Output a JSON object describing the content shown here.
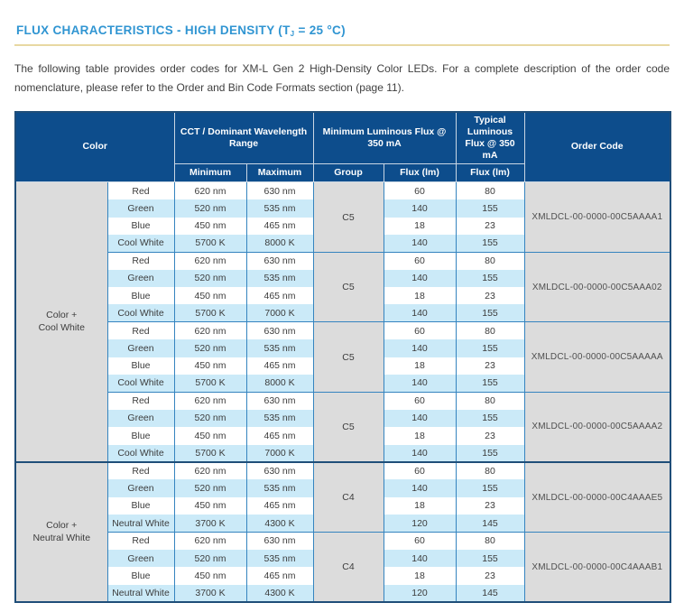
{
  "page": {
    "title_prefix": "FLUX CHARACTERISTICS - HIGH DENSITY (T",
    "title_sub": "J",
    "title_suffix": " = 25 °C)",
    "intro": "The following table provides order codes for XM-L Gen 2 High-Density Color LEDs. For a complete description of the order code nomenclature, please refer to the Order and Bin Code Formats section (page 11)."
  },
  "colors": {
    "header_bg": "#0d4d8c",
    "title_blue": "#3095d2",
    "gold_rule": "#e8d8a2",
    "alt_row": "#cbeaf8",
    "gray_cell": "#dcdcdc",
    "border_blue": "#3584bf",
    "border_navy": "#1f4e79",
    "header_sep": "#c9d6e4",
    "text_dark": "#3c3c3c",
    "order_text": "#4f4f4f"
  },
  "table": {
    "headers": {
      "color": "Color",
      "cct_range": "CCT / Dominant Wavelength Range",
      "min_flux": "Minimum Luminous Flux @ 350 mA",
      "typ_flux": "Typical Luminous Flux @ 350 mA",
      "order_code": "Order Code",
      "minimum": "Minimum",
      "maximum": "Maximum",
      "group": "Group",
      "flux_lm_min": "Flux (lm)",
      "flux_lm_typ": "Flux (lm)"
    },
    "sections": [
      {
        "label": "Color +\nCool White",
        "blocks": [
          {
            "group": "C5",
            "order_code": "XMLDCL-00-0000-00C5AAAA1",
            "rows": [
              {
                "color": "Red",
                "min": "620 nm",
                "max": "630 nm",
                "flux_min": "60",
                "flux_typ": "80"
              },
              {
                "color": "Green",
                "min": "520 nm",
                "max": "535 nm",
                "flux_min": "140",
                "flux_typ": "155"
              },
              {
                "color": "Blue",
                "min": "450 nm",
                "max": "465 nm",
                "flux_min": "18",
                "flux_typ": "23"
              },
              {
                "color": "Cool White",
                "min": "5700 K",
                "max": "8000 K",
                "flux_min": "140",
                "flux_typ": "155"
              }
            ]
          },
          {
            "group": "C5",
            "order_code": "XMLDCL-00-0000-00C5AAA02",
            "rows": [
              {
                "color": "Red",
                "min": "620 nm",
                "max": "630 nm",
                "flux_min": "60",
                "flux_typ": "80"
              },
              {
                "color": "Green",
                "min": "520 nm",
                "max": "535 nm",
                "flux_min": "140",
                "flux_typ": "155"
              },
              {
                "color": "Blue",
                "min": "450 nm",
                "max": "465 nm",
                "flux_min": "18",
                "flux_typ": "23"
              },
              {
                "color": "Cool White",
                "min": "5700 K",
                "max": "7000 K",
                "flux_min": "140",
                "flux_typ": "155"
              }
            ]
          },
          {
            "group": "C5",
            "order_code": "XMLDCL-00-0000-00C5AAAAA",
            "rows": [
              {
                "color": "Red",
                "min": "620 nm",
                "max": "630 nm",
                "flux_min": "60",
                "flux_typ": "80"
              },
              {
                "color": "Green",
                "min": "520 nm",
                "max": "535 nm",
                "flux_min": "140",
                "flux_typ": "155"
              },
              {
                "color": "Blue",
                "min": "450 nm",
                "max": "465 nm",
                "flux_min": "18",
                "flux_typ": "23"
              },
              {
                "color": "Cool White",
                "min": "5700 K",
                "max": "8000 K",
                "flux_min": "140",
                "flux_typ": "155"
              }
            ]
          },
          {
            "group": "C5",
            "order_code": "XMLDCL-00-0000-00C5AAAA2",
            "rows": [
              {
                "color": "Red",
                "min": "620 nm",
                "max": "630 nm",
                "flux_min": "60",
                "flux_typ": "80"
              },
              {
                "color": "Green",
                "min": "520 nm",
                "max": "535 nm",
                "flux_min": "140",
                "flux_typ": "155"
              },
              {
                "color": "Blue",
                "min": "450 nm",
                "max": "465 nm",
                "flux_min": "18",
                "flux_typ": "23"
              },
              {
                "color": "Cool White",
                "min": "5700 K",
                "max": "7000 K",
                "flux_min": "140",
                "flux_typ": "155"
              }
            ]
          }
        ]
      },
      {
        "label": "Color +\nNeutral White",
        "blocks": [
          {
            "group": "C4",
            "order_code": "XMLDCL-00-0000-00C4AAAE5",
            "rows": [
              {
                "color": "Red",
                "min": "620 nm",
                "max": "630 nm",
                "flux_min": "60",
                "flux_typ": "80"
              },
              {
                "color": "Green",
                "min": "520 nm",
                "max": "535 nm",
                "flux_min": "140",
                "flux_typ": "155"
              },
              {
                "color": "Blue",
                "min": "450 nm",
                "max": "465 nm",
                "flux_min": "18",
                "flux_typ": "23"
              },
              {
                "color": "Neutral White",
                "min": "3700 K",
                "max": "4300 K",
                "flux_min": "120",
                "flux_typ": "145"
              }
            ]
          },
          {
            "group": "C4",
            "order_code": "XMLDCL-00-0000-00C4AAAB1",
            "rows": [
              {
                "color": "Red",
                "min": "620 nm",
                "max": "630 nm",
                "flux_min": "60",
                "flux_typ": "80"
              },
              {
                "color": "Green",
                "min": "520 nm",
                "max": "535 nm",
                "flux_min": "140",
                "flux_typ": "155"
              },
              {
                "color": "Blue",
                "min": "450 nm",
                "max": "465 nm",
                "flux_min": "18",
                "flux_typ": "23"
              },
              {
                "color": "Neutral White",
                "min": "3700 K",
                "max": "4300 K",
                "flux_min": "120",
                "flux_typ": "145"
              }
            ]
          }
        ]
      }
    ]
  }
}
